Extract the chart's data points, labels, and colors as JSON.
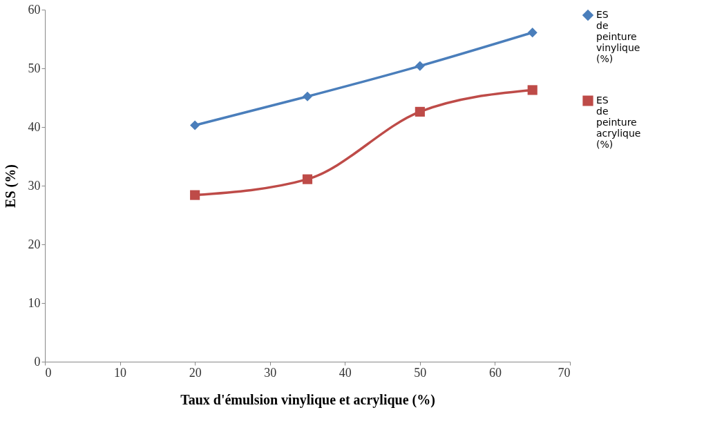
{
  "chart_data": {
    "type": "line",
    "xlabel": "Taux d'émulsion vinylique et acrylique (%)",
    "ylabel": "ES (%)",
    "x": [
      20,
      35,
      50,
      65
    ],
    "series": [
      {
        "name": "ES de peinture vinylique (%)",
        "color": "#4a7ebb",
        "marker": "diamond",
        "values": [
          40.3,
          45.2,
          50.4,
          56.1
        ]
      },
      {
        "name": "ES de peinture acrylique (%)",
        "color": "#be4b48",
        "marker": "square",
        "values": [
          28.4,
          31.1,
          42.6,
          46.3
        ]
      }
    ],
    "xlim": [
      0,
      70
    ],
    "xticks": [
      0,
      10,
      20,
      30,
      40,
      50,
      60,
      70
    ],
    "ylim": [
      0,
      60
    ],
    "yticks": [
      0,
      10,
      20,
      30,
      40,
      50,
      60
    ],
    "grid": false,
    "legend": "right",
    "line_style": "solid"
  }
}
